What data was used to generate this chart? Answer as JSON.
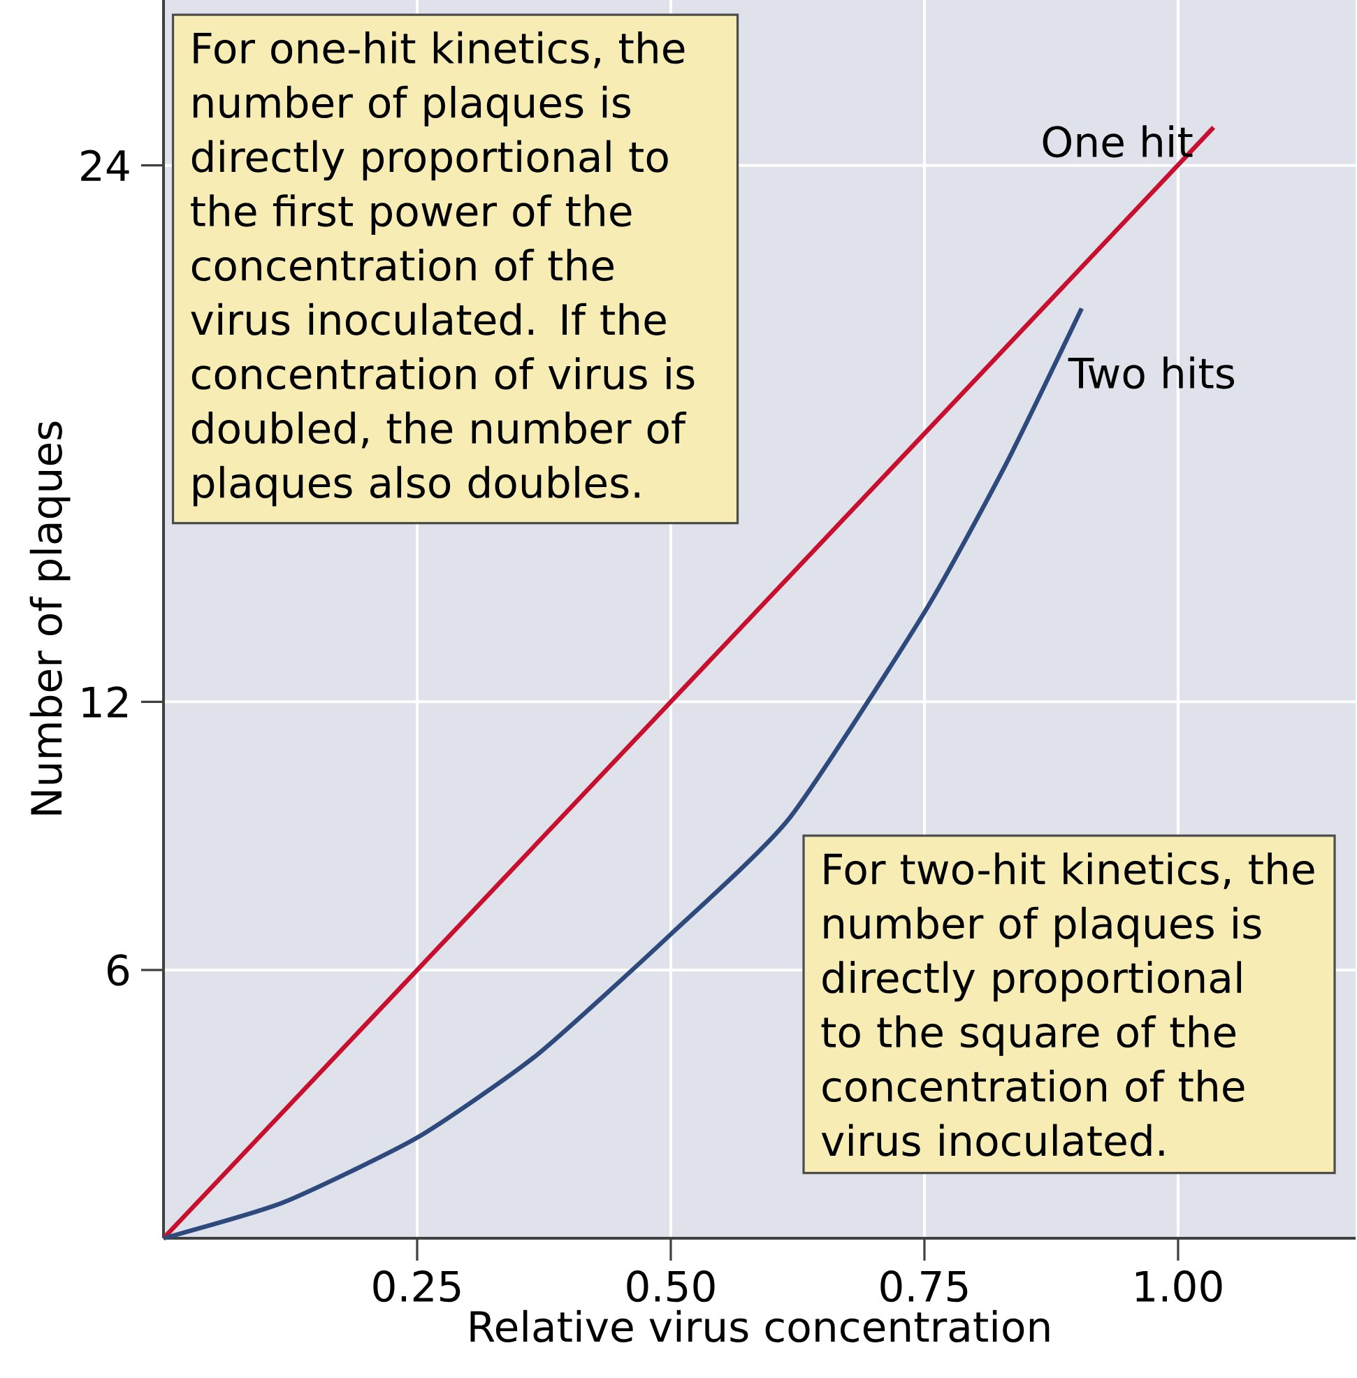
{
  "chart_data": {
    "type": "line",
    "xlabel": "Relative virus concentration",
    "ylabel": "Number of plaques",
    "xlim": [
      0,
      1.175
    ],
    "ylim": [
      0,
      27.7
    ],
    "xticks": [
      0.25,
      {
        "value": 0.5,
        "label": "0.50"
      },
      0.75,
      {
        "value": 1,
        "label": "1.00"
      }
    ],
    "yticks": [
      6,
      12,
      24
    ],
    "grid": true,
    "legend": false,
    "series": [
      {
        "name": "One hit",
        "color": "#c8102e",
        "x": [
          0,
          0.25,
          0.5,
          0.75,
          1.035
        ],
        "values": [
          0,
          6,
          12,
          18,
          24.85
        ]
      },
      {
        "name": "Two hits",
        "color": "#2e4a7d",
        "x": [
          0,
          0.118,
          0.25,
          0.368,
          0.5,
          0.617,
          0.75,
          0.83,
          0.905
        ],
        "values": [
          0,
          0.8,
          2.25,
          4.1,
          6.8,
          9.4,
          14.0,
          17.3,
          20.8
        ]
      }
    ],
    "annotations": [
      "For one-hit kinetics, the number of plaques is directly proportional to the first power of the concentration of the virus inoculated. If the concentration of virus is doubled, the number of plaques also doubles.",
      "For two-hit kinetics, the number of plaques is directly proportional to the square of the concentration of the virus inoculated."
    ]
  }
}
